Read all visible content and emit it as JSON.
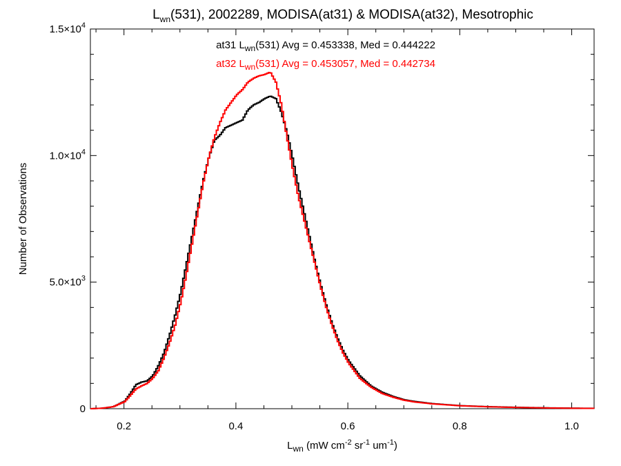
{
  "chart_data": {
    "type": "line",
    "title": {
      "pre": "L",
      "sub": "wn",
      "post": "(531), 2002289, MODISA(at31) & MODISA(at32), Mesotrophic"
    },
    "xlabel": {
      "pre": "L",
      "sub": "wn",
      "text1": " (mW cm",
      "sup1": "-2",
      "text2": " sr",
      "sup2": "-1",
      "text3": " um",
      "sup3": "-1",
      "text4": ")"
    },
    "ylabel": "Number of Observations",
    "xlim": [
      0.14,
      1.04
    ],
    "ylim": [
      0,
      15000
    ],
    "x_ticks": [
      0.2,
      0.4,
      0.6,
      0.8,
      1.0
    ],
    "x_tick_labels": [
      "0.2",
      "0.4",
      "0.6",
      "0.8",
      "1.0"
    ],
    "y_ticks": [
      {
        "value": 0,
        "mant": "0",
        "exp": ""
      },
      {
        "value": 5000,
        "mant": "5.0×10",
        "exp": "3"
      },
      {
        "value": 10000,
        "mant": "1.0×10",
        "exp": "4"
      },
      {
        "value": 15000,
        "mant": "1.5×10",
        "exp": "4"
      }
    ],
    "grid": false,
    "series": [
      {
        "name": "at31",
        "color": "#000000",
        "x": [
          0.14,
          0.16,
          0.18,
          0.2,
          0.21,
          0.22,
          0.23,
          0.24,
          0.25,
          0.26,
          0.27,
          0.28,
          0.29,
          0.3,
          0.31,
          0.32,
          0.33,
          0.34,
          0.35,
          0.36,
          0.37,
          0.38,
          0.39,
          0.4,
          0.41,
          0.42,
          0.43,
          0.44,
          0.45,
          0.46,
          0.47,
          0.48,
          0.49,
          0.5,
          0.51,
          0.52,
          0.53,
          0.54,
          0.55,
          0.56,
          0.57,
          0.58,
          0.59,
          0.6,
          0.62,
          0.64,
          0.66,
          0.68,
          0.7,
          0.72,
          0.75,
          0.8,
          0.85,
          0.9,
          0.95,
          1.0,
          1.04
        ],
        "y": [
          0,
          20,
          80,
          300,
          600,
          950,
          1050,
          1100,
          1300,
          1700,
          2200,
          2900,
          3700,
          4600,
          5700,
          6800,
          7900,
          9000,
          9900,
          10600,
          10800,
          11100,
          11200,
          11300,
          11400,
          11800,
          12000,
          12100,
          12250,
          12350,
          12250,
          11700,
          10900,
          9900,
          8800,
          7800,
          6800,
          5800,
          4900,
          4100,
          3400,
          2800,
          2300,
          1900,
          1300,
          900,
          650,
          480,
          350,
          280,
          200,
          120,
          80,
          55,
          35,
          20,
          15
        ]
      },
      {
        "name": "at32",
        "color": "#ff0000",
        "x": [
          0.14,
          0.16,
          0.18,
          0.2,
          0.21,
          0.22,
          0.23,
          0.24,
          0.25,
          0.26,
          0.27,
          0.28,
          0.29,
          0.3,
          0.31,
          0.32,
          0.33,
          0.34,
          0.35,
          0.36,
          0.37,
          0.38,
          0.39,
          0.4,
          0.41,
          0.42,
          0.43,
          0.44,
          0.45,
          0.46,
          0.47,
          0.48,
          0.49,
          0.5,
          0.51,
          0.52,
          0.53,
          0.54,
          0.55,
          0.56,
          0.57,
          0.58,
          0.59,
          0.6,
          0.62,
          0.64,
          0.66,
          0.68,
          0.7,
          0.72,
          0.75,
          0.8,
          0.85,
          0.9,
          0.95,
          1.0,
          1.04
        ],
        "y": [
          0,
          20,
          80,
          280,
          520,
          780,
          900,
          1000,
          1200,
          1500,
          2000,
          2600,
          3300,
          4200,
          5300,
          6500,
          7700,
          8900,
          9900,
          10700,
          11300,
          11800,
          12100,
          12400,
          12600,
          12900,
          13050,
          13150,
          13200,
          13300,
          12900,
          12000,
          10700,
          9500,
          8400,
          7500,
          6600,
          5700,
          4800,
          4000,
          3300,
          2700,
          2200,
          1800,
          1200,
          850,
          600,
          450,
          330,
          260,
          190,
          115,
          75,
          50,
          30,
          18,
          12
        ]
      }
    ],
    "annotations": [
      {
        "series": "at31",
        "color": "#000000",
        "pre": "at31 L",
        "sub": "wn",
        "post": "(531) Avg = 0.453338, Med = 0.444222"
      },
      {
        "series": "at32",
        "color": "#ff0000",
        "pre": "at32 L",
        "sub": "wn",
        "post": "(531) Avg = 0.453057, Med = 0.442734"
      }
    ]
  }
}
